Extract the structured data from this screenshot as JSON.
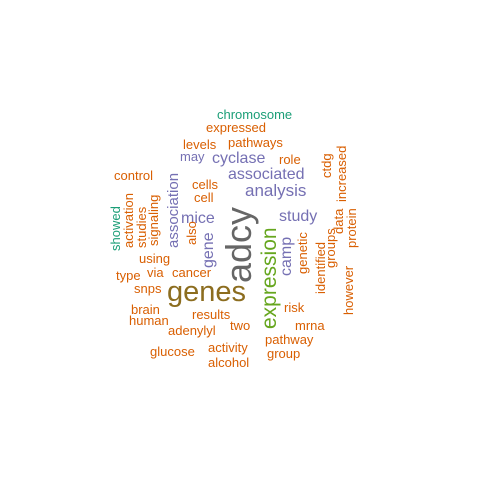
{
  "colors": {
    "teal": "#1b9e77",
    "orange": "#d95f02",
    "purple": "#7570b3",
    "brown": "#8c6d1f",
    "gray": "#666666",
    "green": "#66a61e"
  },
  "words": [
    {
      "text": "adcy",
      "weight": 10,
      "color": "gray",
      "orientation": "vertical"
    },
    {
      "text": "genes",
      "weight": 9,
      "color": "brown",
      "orientation": "horizontal"
    },
    {
      "text": "expression",
      "weight": 8,
      "color": "green",
      "orientation": "vertical"
    },
    {
      "text": "analysis",
      "weight": 5,
      "color": "purple",
      "orientation": "horizontal"
    },
    {
      "text": "associated",
      "weight": 5,
      "color": "purple",
      "orientation": "horizontal"
    },
    {
      "text": "cyclase",
      "weight": 5,
      "color": "purple",
      "orientation": "horizontal"
    },
    {
      "text": "study",
      "weight": 5,
      "color": "purple",
      "orientation": "horizontal"
    },
    {
      "text": "mice",
      "weight": 5,
      "color": "purple",
      "orientation": "horizontal"
    },
    {
      "text": "camp",
      "weight": 5,
      "color": "purple",
      "orientation": "vertical"
    },
    {
      "text": "gene",
      "weight": 5,
      "color": "purple",
      "orientation": "vertical"
    },
    {
      "text": "association",
      "weight": 4,
      "color": "purple",
      "orientation": "vertical"
    },
    {
      "text": "chromosome",
      "weight": 2,
      "color": "teal",
      "orientation": "horizontal"
    },
    {
      "text": "showed",
      "weight": 2,
      "color": "teal",
      "orientation": "vertical"
    },
    {
      "text": "expressed",
      "weight": 2,
      "color": "orange",
      "orientation": "horizontal"
    },
    {
      "text": "pathways",
      "weight": 2,
      "color": "orange",
      "orientation": "horizontal"
    },
    {
      "text": "levels",
      "weight": 2,
      "color": "orange",
      "orientation": "horizontal"
    },
    {
      "text": "may",
      "weight": 2,
      "color": "purple",
      "orientation": "horizontal"
    },
    {
      "text": "role",
      "weight": 2,
      "color": "orange",
      "orientation": "horizontal"
    },
    {
      "text": "ctdg",
      "weight": 2,
      "color": "orange",
      "orientation": "vertical"
    },
    {
      "text": "increased",
      "weight": 2,
      "color": "orange",
      "orientation": "vertical"
    },
    {
      "text": "control",
      "weight": 2,
      "color": "orange",
      "orientation": "horizontal"
    },
    {
      "text": "cells",
      "weight": 2,
      "color": "orange",
      "orientation": "horizontal"
    },
    {
      "text": "cell",
      "weight": 2,
      "color": "orange",
      "orientation": "horizontal"
    },
    {
      "text": "signaling",
      "weight": 2,
      "color": "orange",
      "orientation": "vertical"
    },
    {
      "text": "studies",
      "weight": 2,
      "color": "orange",
      "orientation": "vertical"
    },
    {
      "text": "activation",
      "weight": 2,
      "color": "orange",
      "orientation": "vertical"
    },
    {
      "text": "also",
      "weight": 2,
      "color": "orange",
      "orientation": "vertical"
    },
    {
      "text": "genetic",
      "weight": 2,
      "color": "orange",
      "orientation": "vertical"
    },
    {
      "text": "identified",
      "weight": 2,
      "color": "orange",
      "orientation": "vertical"
    },
    {
      "text": "groups",
      "weight": 2,
      "color": "orange",
      "orientation": "vertical"
    },
    {
      "text": "data",
      "weight": 2,
      "color": "orange",
      "orientation": "vertical"
    },
    {
      "text": "protein",
      "weight": 2,
      "color": "orange",
      "orientation": "vertical"
    },
    {
      "text": "however",
      "weight": 2,
      "color": "orange",
      "orientation": "vertical"
    },
    {
      "text": "using",
      "weight": 2,
      "color": "orange",
      "orientation": "horizontal"
    },
    {
      "text": "type",
      "weight": 2,
      "color": "orange",
      "orientation": "horizontal"
    },
    {
      "text": "via",
      "weight": 2,
      "color": "orange",
      "orientation": "horizontal"
    },
    {
      "text": "cancer",
      "weight": 2,
      "color": "orange",
      "orientation": "horizontal"
    },
    {
      "text": "snps",
      "weight": 2,
      "color": "orange",
      "orientation": "horizontal"
    },
    {
      "text": "brain",
      "weight": 2,
      "color": "orange",
      "orientation": "horizontal"
    },
    {
      "text": "human",
      "weight": 2,
      "color": "orange",
      "orientation": "horizontal"
    },
    {
      "text": "results",
      "weight": 2,
      "color": "orange",
      "orientation": "horizontal"
    },
    {
      "text": "adenylyl",
      "weight": 2,
      "color": "orange",
      "orientation": "horizontal"
    },
    {
      "text": "two",
      "weight": 2,
      "color": "orange",
      "orientation": "horizontal"
    },
    {
      "text": "risk",
      "weight": 2,
      "color": "orange",
      "orientation": "horizontal"
    },
    {
      "text": "mrna",
      "weight": 2,
      "color": "orange",
      "orientation": "horizontal"
    },
    {
      "text": "pathway",
      "weight": 2,
      "color": "orange",
      "orientation": "horizontal"
    },
    {
      "text": "group",
      "weight": 2,
      "color": "orange",
      "orientation": "horizontal"
    },
    {
      "text": "activity",
      "weight": 2,
      "color": "orange",
      "orientation": "horizontal"
    },
    {
      "text": "glucose",
      "weight": 2,
      "color": "orange",
      "orientation": "horizontal"
    },
    {
      "text": "alcohol",
      "weight": 2,
      "color": "orange",
      "orientation": "horizontal"
    }
  ]
}
